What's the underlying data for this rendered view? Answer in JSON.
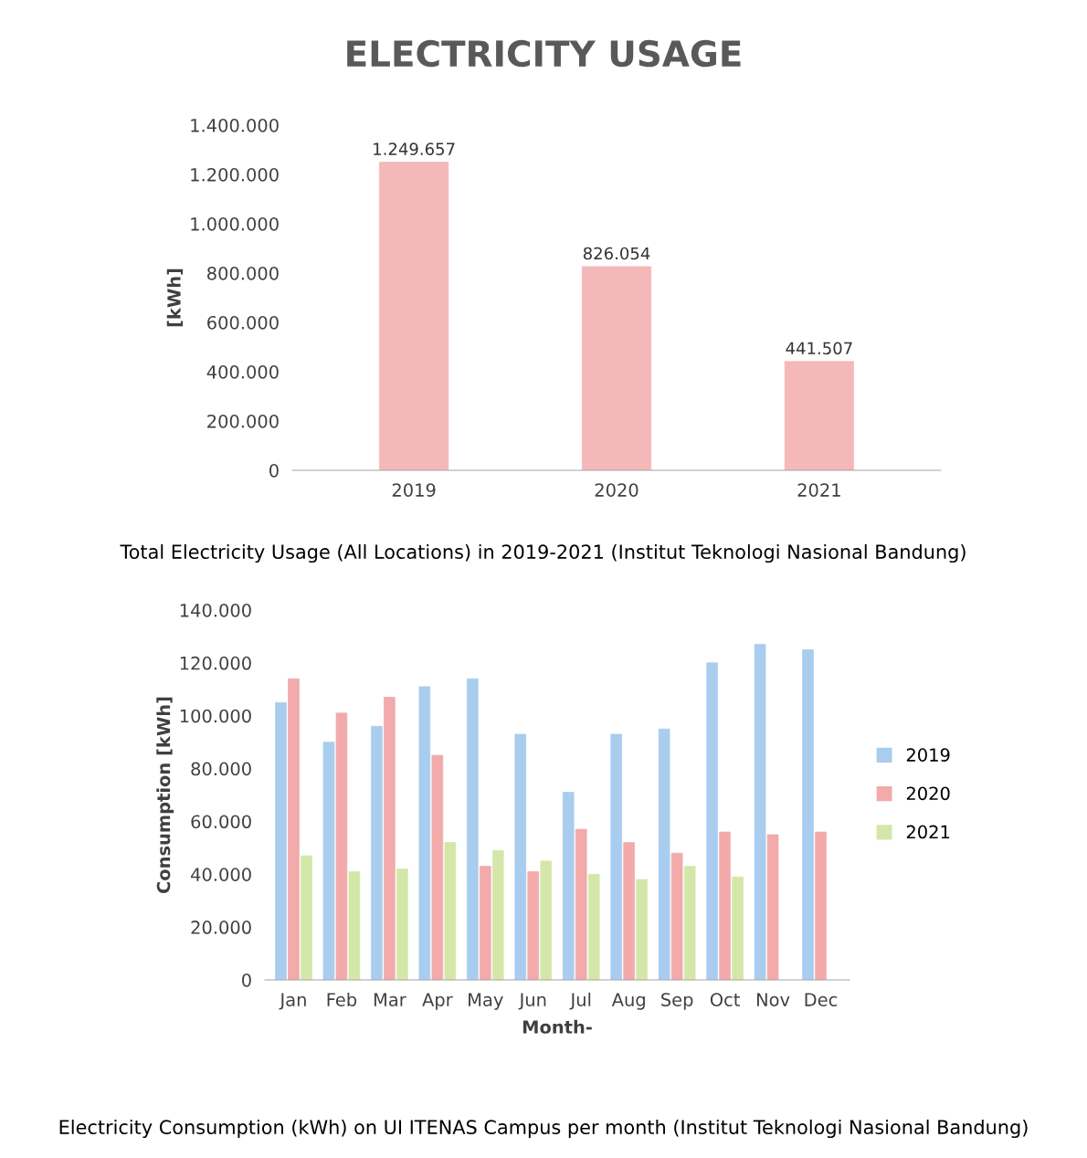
{
  "chart_data": [
    {
      "type": "bar",
      "title": "ELECTRICITY USAGE",
      "ylabel": "[kWh]",
      "categories": [
        "2019",
        "2020",
        "2021"
      ],
      "series": [
        {
          "color": "#f4b8b8",
          "values": [
            1249657,
            826054,
            441507
          ],
          "value_labels": [
            "1.249.657",
            "826.054",
            "441.507"
          ]
        }
      ],
      "ylim": [
        0,
        1400000
      ],
      "yticks": [
        0,
        {
          "value": 200000,
          "label": "200.000"
        },
        {
          "value": 400000,
          "label": "400.000"
        },
        {
          "value": 600000,
          "label": "600.000"
        },
        {
          "value": 800000,
          "label": "800.000"
        },
        {
          "value": 1000000,
          "label": "1.000.000"
        },
        {
          "value": 1200000,
          "label": "1.200.000"
        },
        {
          "value": 1400000,
          "label": "1.400.000"
        }
      ],
      "grid": false,
      "legend": false,
      "annotations": [
        "Total Electricity Usage (All Locations) in 2019-2021 (Institut Teknologi Nasional Bandung)"
      ]
    },
    {
      "type": "bar",
      "xlabel": "Month-",
      "ylabel": "Consumption [kWh]",
      "categories": [
        "Jan",
        "Feb",
        "Mar",
        "Apr",
        "May",
        "Jun",
        "Jul",
        "Aug",
        "Sep",
        "Oct",
        "Nov",
        "Dec"
      ],
      "series": [
        {
          "name": "2019",
          "color": "#a9cdee",
          "values": [
            105000,
            90000,
            96000,
            111000,
            114000,
            93000,
            71000,
            93000,
            95000,
            120000,
            127000,
            125000
          ]
        },
        {
          "name": "2020",
          "color": "#f2aaaa",
          "values": [
            114000,
            101000,
            107000,
            85000,
            43000,
            41000,
            57000,
            52000,
            48000,
            56000,
            55000,
            56000
          ]
        },
        {
          "name": "2021",
          "color": "#d3e8a8",
          "values": [
            47000,
            41000,
            42000,
            52000,
            49000,
            45000,
            40000,
            38000,
            43000,
            39000,
            null,
            null
          ]
        }
      ],
      "ylim": [
        0,
        140000
      ],
      "yticks": [
        0,
        {
          "value": 20000,
          "label": "20.000"
        },
        {
          "value": 40000,
          "label": "40.000"
        },
        {
          "value": 60000,
          "label": "60.000"
        },
        {
          "value": 80000,
          "label": "80.000"
        },
        {
          "value": 100000,
          "label": "100.000"
        },
        {
          "value": 120000,
          "label": "120.000"
        },
        {
          "value": 140000,
          "label": "140.000"
        }
      ],
      "grid": false,
      "legend": "right",
      "annotations": [
        "Electricity Consumption (kWh) on UI ITENAS Campus per month (Institut Teknologi Nasional Bandung)"
      ]
    }
  ]
}
